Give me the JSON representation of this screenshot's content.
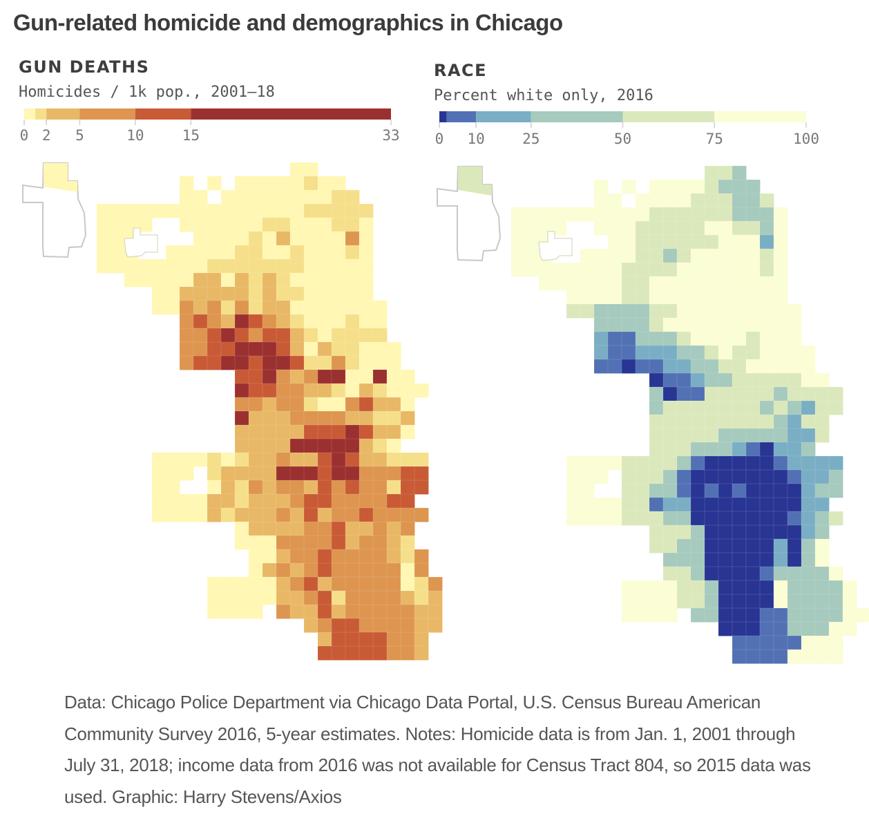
{
  "title": "Gun-related homicide and demographics in Chicago",
  "panels": {
    "gun": {
      "heading": "GUN DEATHS",
      "subtitle": "Homicides / 1k pop., 2001–18",
      "ticks": [
        "0",
        "2",
        "5",
        "10",
        "15",
        "33"
      ]
    },
    "race": {
      "heading": "RACE",
      "subtitle": "Percent white only, 2016",
      "ticks": [
        "0",
        "10",
        "25",
        "50",
        "75",
        "100"
      ]
    }
  },
  "chart_data": [
    {
      "type": "heatmap",
      "kind": "choropleth",
      "title": "GUN DEATHS",
      "subtitle": "Homicides / 1k pop., 2001–18",
      "legend": {
        "domain": [
          0,
          33
        ],
        "bins": [
          {
            "min": 0,
            "max": 1,
            "color": "#fff7b3"
          },
          {
            "min": 1,
            "max": 2,
            "color": "#f6df8a"
          },
          {
            "min": 2,
            "max": 5,
            "color": "#e8b866"
          },
          {
            "min": 5,
            "max": 10,
            "color": "#dd9550"
          },
          {
            "min": 10,
            "max": 15,
            "color": "#c95a36"
          },
          {
            "min": 15,
            "max": 33,
            "color": "#9b3030"
          }
        ],
        "tick_values": [
          0,
          2,
          5,
          10,
          15,
          33
        ]
      },
      "grid_rows": [
        "..............00........",
        "......0.0.00000100......",
        "......00.0000000011.....",
        "00000000000000011111....",
        "0000..00000011000110....",
        "000....0000102000030....",
        "000..000001100100010....",
        "00000000111111100000....",
        "..000002202121000000....",
        "....0022222121100000....",
        "....00323131220000000...",
        "......343254321000100...",
        "......334543442101111...",
        "......3344555420211000..",
        "......3445545541131000..",
        "..........4453235500500.",
        "..........54433221021000",
        "..........3323310034220.",
        "..........5222333322112.",
        "..........2222244454220.",
        "..........222255555210..",
        "....00001012232245422111",
        "....000.1222255545533344",
        "....00..0213233243433144",
        "....0000221222344333344.",
        "....00002122232423343333",
        "..........0222233422323.",
        "..........0003333423321.",
        "...........0023343333213",
        "...........0232343333303",
        "........00000234233333013",
        "........00000223413333212",
        "........0000.322423333322",
        "...............2344333322",
        "................24444332.",
        "................44444332."
      ]
    },
    {
      "type": "heatmap",
      "kind": "choropleth",
      "title": "RACE",
      "subtitle": "Percent white only, 2016",
      "legend": {
        "domain": [
          0,
          100
        ],
        "bins": [
          {
            "min": 0,
            "max": 2,
            "color": "#283593"
          },
          {
            "min": 2,
            "max": 10,
            "color": "#5271b4"
          },
          {
            "min": 10,
            "max": 25,
            "color": "#7aaec5"
          },
          {
            "min": 25,
            "max": 50,
            "color": "#a6cabd"
          },
          {
            "min": 50,
            "max": 75,
            "color": "#dbe8bc"
          },
          {
            "min": 75,
            "max": 100,
            "color": "#fbfdd5"
          }
        ],
        "tick_values": [
          0,
          10,
          25,
          50,
          75,
          100
        ]
      },
      "grid_rows": [
        "..............443.......",
        "......5.5.55554333......",
        "......55.5555444334.....",
        "55555555554444443335....",
        "5555..55544444554435....",
        "555....5544444455525....",
        "555..555544345555545....",
        "55555555444455555545....",
        "..555555445555555555....",
        "....5555445555555555....",
        "....44333344555555555...",
        "......333345555555555...",
        "......211333455554555...",
        "......2112223345445555..",
        "......1101122334455555..",
        "..........0112334444455.",
        "..........30114444434444",
        "..........34444444343244",
        "..........4444444443244.",
        "..........4444433333224.",
        "..........444333210223..",
        "....55554444310000012222",
        "....555.4443100000001223",
        "....55..4433101010000233",
        "....5555441220000000022.",
        "....55554443300000001234",
        "..........4443000000023.",
        "..........4433000002035.",
        "...........333000002035.",
        "...........4430000133335",
        "........55554430000533335",
        "........55554430000533335",
        "........5555.3300011333355",
        "...............0001133355",
        "................11111555.",
        "................11115555."
      ]
    }
  ],
  "footer": "Data: Chicago Police Department via Chicago Data Portal, U.S. Census Bureau American Community Survey 2016, 5-year estimates. Notes: Homicide data is from Jan. 1, 2001 through July 31, 2018; income data from 2016 was not available for Census Tract 804, so 2015 data was used. Graphic: Harry Stevens/Axios"
}
